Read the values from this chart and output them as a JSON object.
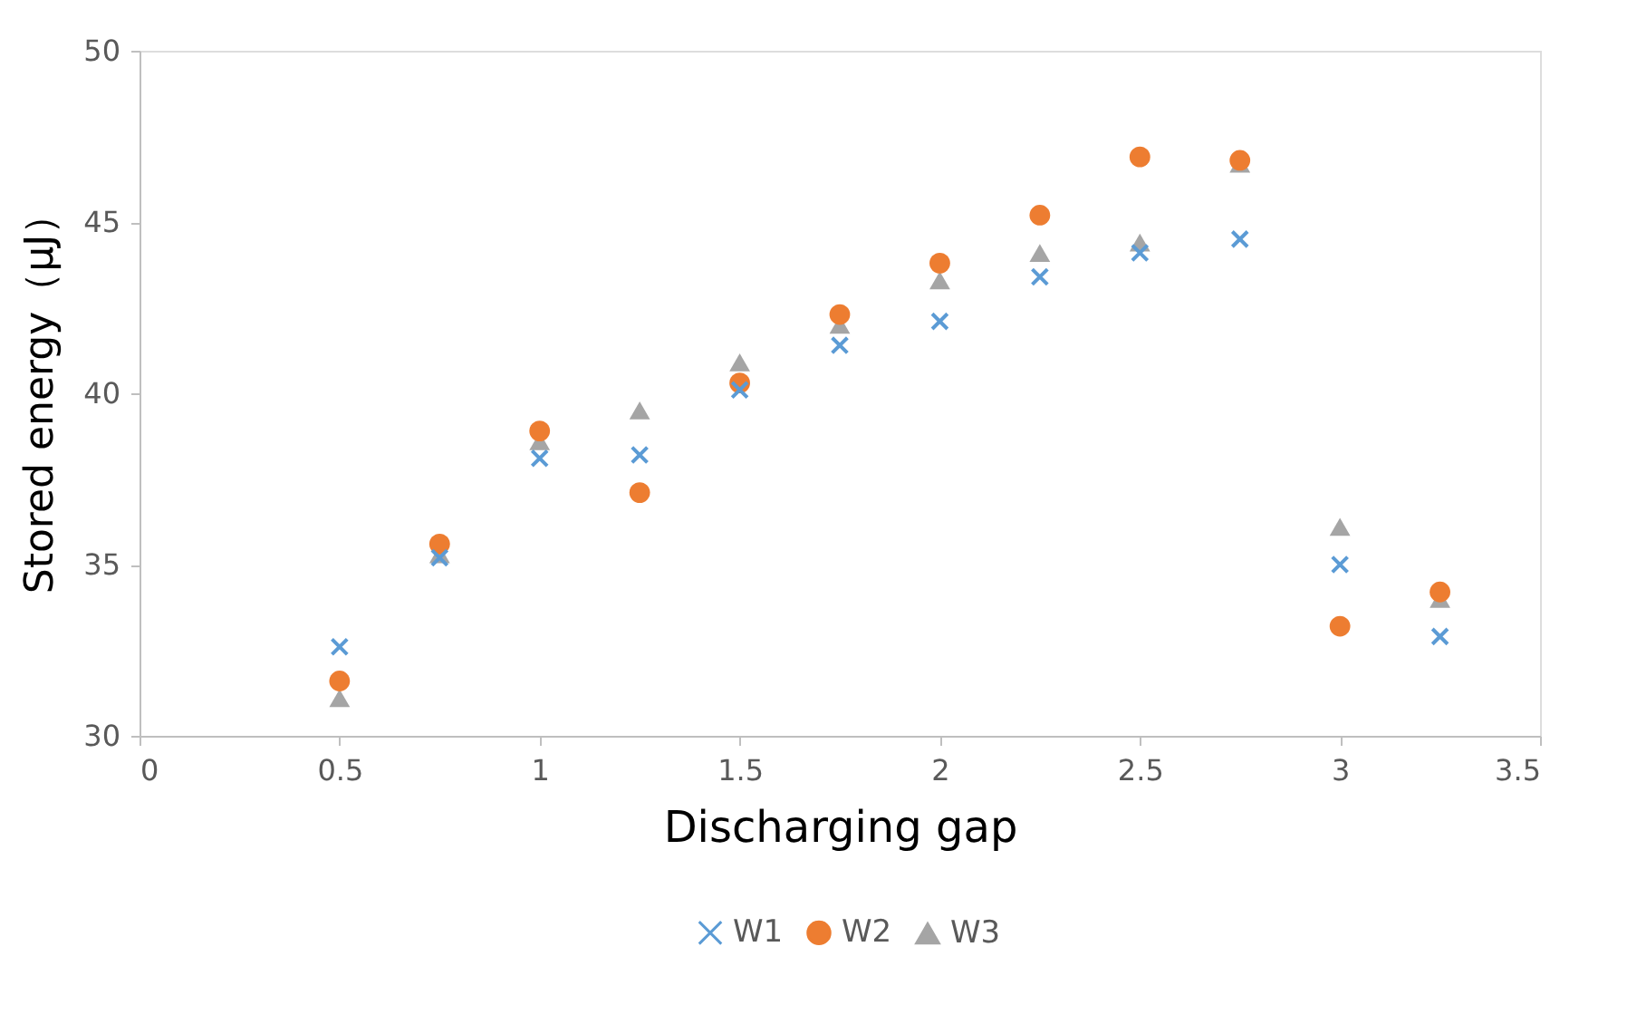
{
  "chart_data": {
    "type": "scatter",
    "xlabel": "Discharging gap",
    "ylabel": "Stored energy（μJ）",
    "x": [
      0.5,
      0.75,
      1.0,
      1.25,
      1.5,
      1.75,
      2.0,
      2.25,
      2.5,
      2.75,
      3.0,
      3.25
    ],
    "series": [
      {
        "name": "W1",
        "color": "#5b9bd5",
        "marker": "cross",
        "values": [
          32.6,
          35.2,
          38.1,
          38.2,
          40.1,
          41.4,
          42.1,
          43.4,
          44.1,
          44.5,
          35.0,
          32.9
        ]
      },
      {
        "name": "W2",
        "color": "#ed7d31",
        "marker": "circle",
        "values": [
          31.6,
          35.6,
          38.9,
          37.1,
          40.3,
          42.3,
          43.8,
          45.2,
          46.9,
          46.8,
          33.2,
          34.2
        ]
      },
      {
        "name": "W3",
        "color": "#a5a5a5",
        "marker": "triangle",
        "values": [
          31.1,
          35.3,
          38.6,
          39.5,
          40.9,
          42.0,
          43.3,
          44.1,
          44.4,
          46.7,
          36.1,
          34.0
        ]
      }
    ],
    "xlim": [
      0,
      3.5
    ],
    "xticks": [
      0,
      0.5,
      1,
      1.5,
      2,
      2.5,
      3,
      3.5
    ],
    "ylim": [
      30,
      50
    ],
    "yticks": [
      30,
      35,
      40,
      45,
      50
    ],
    "grid": false,
    "legend": "bottom"
  }
}
